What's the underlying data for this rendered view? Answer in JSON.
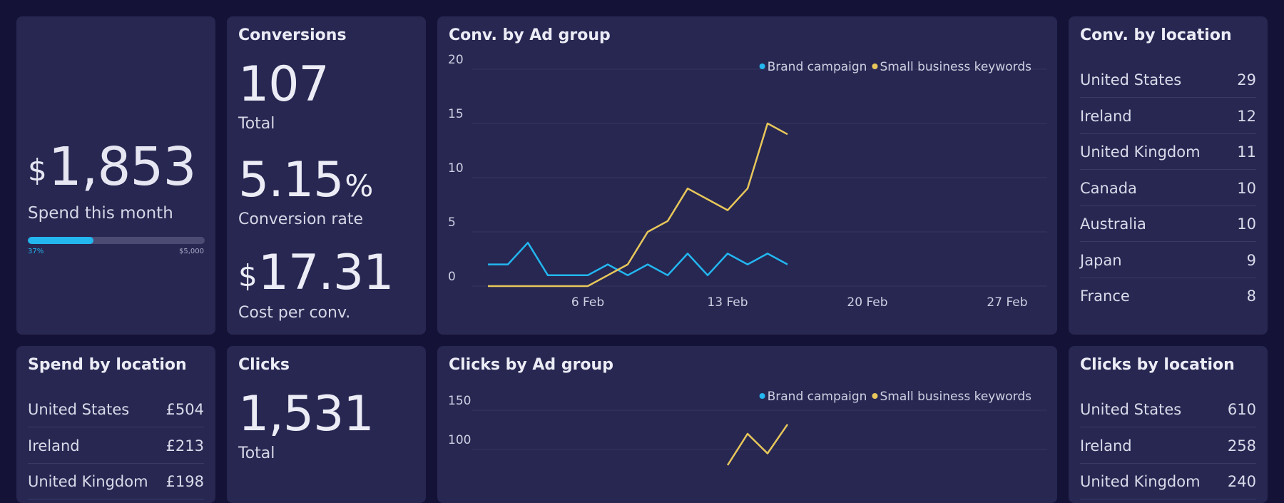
{
  "colors": {
    "background": "#141236",
    "card": "#272752",
    "brand_series": "#23b6ef",
    "small_business_series": "#e8c75a",
    "progress_track": "#4b4b74"
  },
  "spend": {
    "currency": "$",
    "amount": "1,853",
    "label": "Spend this month",
    "progress_pct": 37,
    "progress_label": "37%",
    "budget_label": "$5,000"
  },
  "conversions": {
    "title": "Conversions",
    "total": "107",
    "total_label": "Total",
    "rate": "5.15",
    "rate_unit": "%",
    "rate_label": "Conversion rate",
    "cost_currency": "$",
    "cost": "17.31",
    "cost_label": "Cost per conv."
  },
  "conv_by_location": {
    "title": "Conv. by location",
    "rows": [
      {
        "name": "United States",
        "value": "29"
      },
      {
        "name": "Ireland",
        "value": "12"
      },
      {
        "name": "United Kingdom",
        "value": "11"
      },
      {
        "name": "Canada",
        "value": "10"
      },
      {
        "name": "Australia",
        "value": "10"
      },
      {
        "name": "Japan",
        "value": "9"
      },
      {
        "name": "France",
        "value": "8"
      }
    ]
  },
  "spend_by_location": {
    "title": "Spend by location",
    "rows": [
      {
        "name": "United States",
        "value": "£504"
      },
      {
        "name": "Ireland",
        "value": "£213"
      },
      {
        "name": "United Kingdom",
        "value": "£198"
      }
    ]
  },
  "clicks": {
    "title": "Clicks",
    "total": "1,531",
    "total_label": "Total"
  },
  "clicks_by_location": {
    "title": "Clicks by location",
    "rows": [
      {
        "name": "United States",
        "value": "610"
      },
      {
        "name": "Ireland",
        "value": "258"
      },
      {
        "name": "United Kingdom",
        "value": "240"
      }
    ]
  },
  "chart_data": [
    {
      "type": "line",
      "title": "Conv. by Ad group",
      "xlabel": "",
      "ylabel": "",
      "ylim": [
        0,
        20
      ],
      "yticks": [
        0,
        5,
        10,
        15,
        20
      ],
      "xlim": [
        1,
        29
      ],
      "xticks": [
        {
          "x": 6,
          "label": "6 Feb"
        },
        {
          "x": 13,
          "label": "13 Feb"
        },
        {
          "x": 20,
          "label": "20 Feb"
        },
        {
          "x": 27,
          "label": "27 Feb"
        }
      ],
      "legend": "top-right",
      "series": [
        {
          "name": "Brand campaign",
          "color": "#23b6ef",
          "x": [
            1,
            2,
            3,
            4,
            5,
            6,
            7,
            8,
            9,
            10,
            11,
            12,
            13,
            14,
            15,
            16
          ],
          "values": [
            2,
            2,
            4,
            1,
            1,
            1,
            2,
            1,
            2,
            1,
            3,
            1,
            3,
            2,
            3,
            2
          ]
        },
        {
          "name": "Small business keywords",
          "color": "#e8c75a",
          "x": [
            1,
            2,
            3,
            4,
            5,
            6,
            7,
            8,
            9,
            10,
            11,
            12,
            13,
            14,
            15,
            16
          ],
          "values": [
            0,
            0,
            0,
            0,
            0,
            0,
            1,
            2,
            5,
            6,
            9,
            8,
            7,
            9,
            15,
            14
          ]
        }
      ]
    },
    {
      "type": "line",
      "title": "Clicks by Ad group",
      "xlabel": "",
      "ylabel": "",
      "ylim": [
        0,
        150
      ],
      "yticks": [
        100,
        150
      ],
      "xlim": [
        1,
        29
      ],
      "legend": "top-right",
      "series": [
        {
          "name": "Brand campaign",
          "color": "#23b6ef",
          "x": [],
          "values": []
        },
        {
          "name": "Small business keywords",
          "color": "#e8c75a",
          "x": [
            13,
            14,
            15,
            16
          ],
          "values": [
            80,
            120,
            95,
            132
          ]
        }
      ]
    }
  ]
}
